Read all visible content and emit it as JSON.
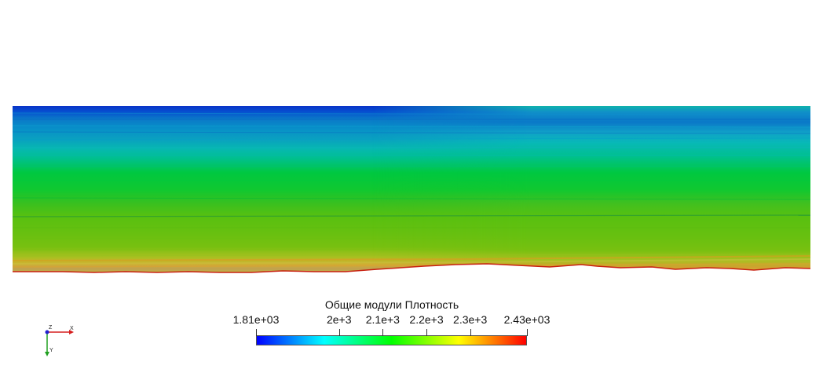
{
  "legend": {
    "title": "Общие модули Плотность",
    "ticks": [
      {
        "label": "1.81e+03",
        "value": 1810
      },
      {
        "label": "2e+3",
        "value": 2000
      },
      {
        "label": "2.1e+3",
        "value": 2100
      },
      {
        "label": "2.2e+3",
        "value": 2200
      },
      {
        "label": "2.3e+3",
        "value": 2300
      },
      {
        "label": "2.43e+03",
        "value": 2430
      }
    ],
    "range": [
      1810,
      2430
    ],
    "colormap": [
      "#0000ff",
      "#00ffff",
      "#00ff00",
      "#ffff00",
      "#ff0000"
    ]
  },
  "axes": {
    "x_label": "X",
    "y_label": "Y",
    "z_label": "Z"
  },
  "colors": {
    "background": "#ffffff",
    "x_axis": "#d62020",
    "y_axis": "#20a020",
    "z_axis": "#2020d0"
  }
}
